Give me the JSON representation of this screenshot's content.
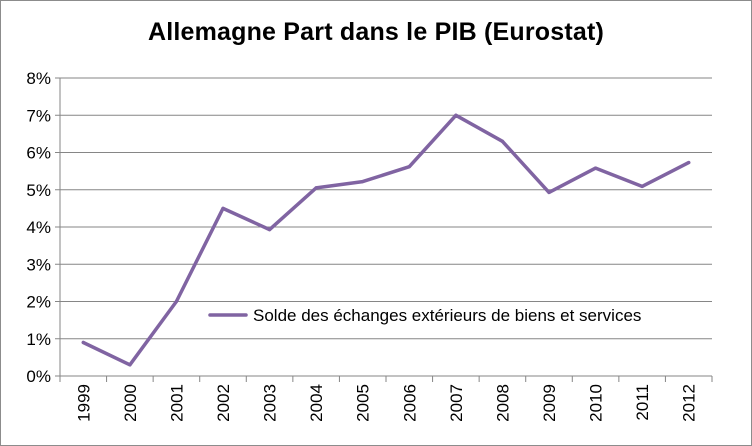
{
  "chart_data": {
    "type": "line",
    "title": "Allemagne Part dans le PIB (Eurostat)",
    "xlabel": "",
    "ylabel": "",
    "categories": [
      "1999",
      "2000",
      "2001",
      "2002",
      "2003",
      "2004",
      "2005",
      "2006",
      "2007",
      "2008",
      "2009",
      "2010",
      "2011",
      "2012"
    ],
    "series": [
      {
        "name": "Solde des échanges extérieurs de biens et services",
        "color": "#8064a2",
        "values": [
          0.9,
          0.3,
          2.0,
          4.5,
          3.93,
          5.05,
          5.22,
          5.62,
          7.0,
          6.3,
          4.93,
          5.58,
          5.09,
          5.73
        ]
      }
    ],
    "ylim": [
      0,
      8
    ],
    "yticks": [
      0,
      1,
      2,
      3,
      4,
      5,
      6,
      7,
      8
    ],
    "ytick_labels": [
      "0%",
      "1%",
      "2%",
      "3%",
      "4%",
      "5%",
      "6%",
      "7%",
      "8%"
    ],
    "grid": true,
    "legend_position": "inside-center"
  }
}
